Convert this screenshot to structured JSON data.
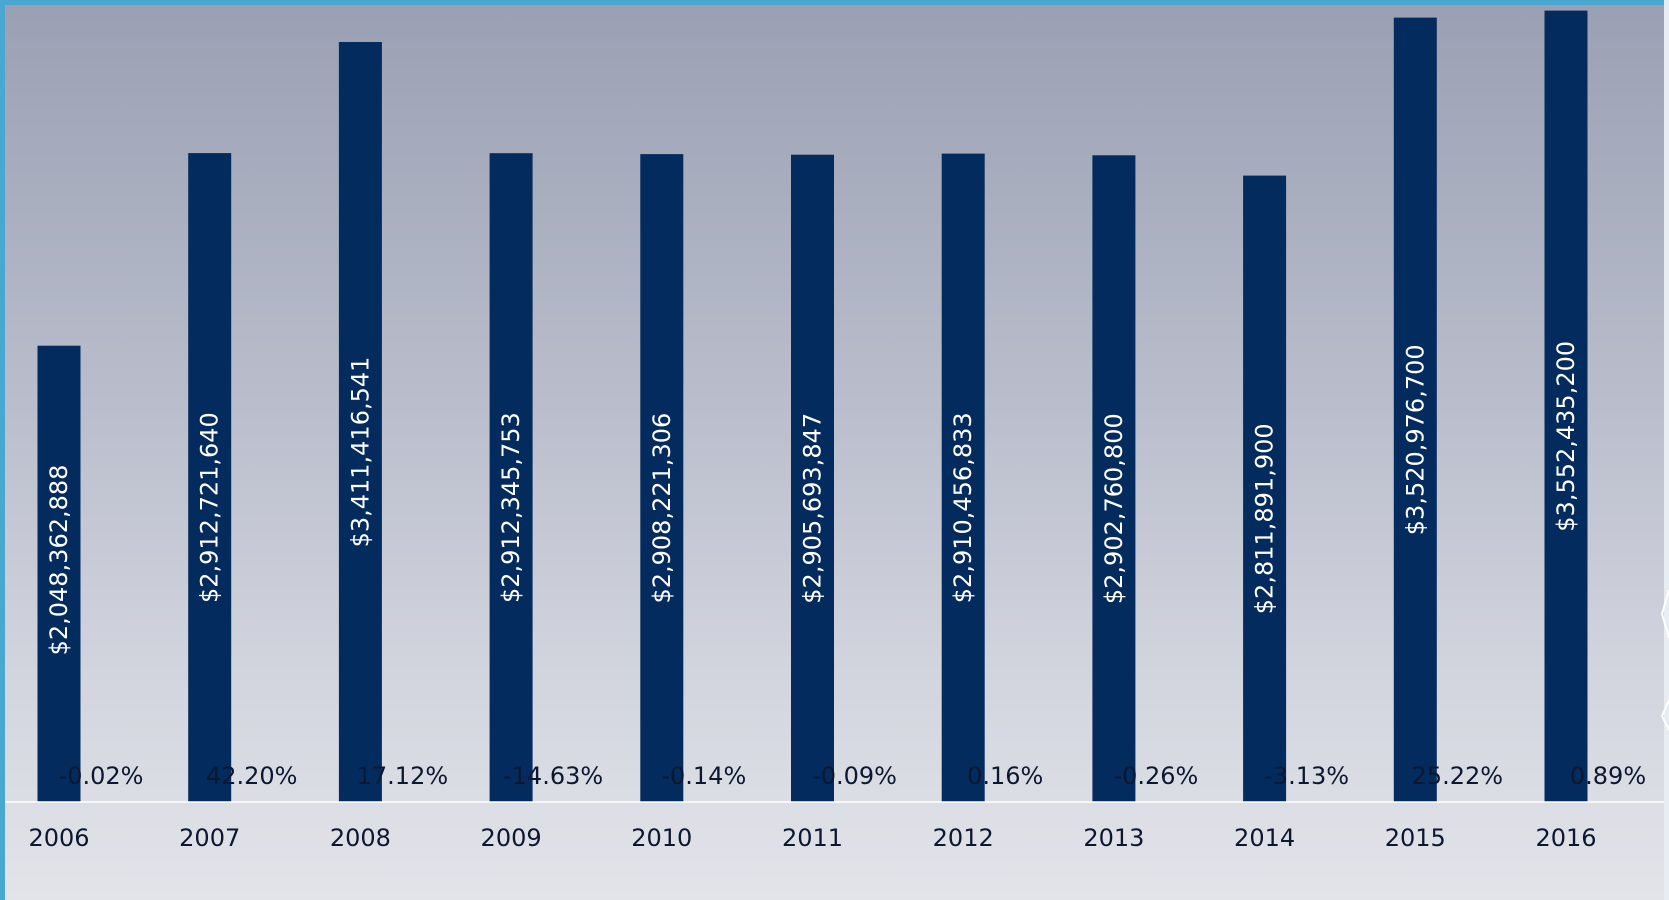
{
  "chart_data": {
    "type": "bar",
    "categories": [
      "2006",
      "2007",
      "2008",
      "2009",
      "2010",
      "2011",
      "2012",
      "2013",
      "2014",
      "2015",
      "2016"
    ],
    "values": [
      2048362888,
      2912721640,
      3411416541,
      2912345753,
      2908221306,
      2905693847,
      2910456833,
      2902760800,
      2811891900,
      3520976700,
      3552435200
    ],
    "value_labels": [
      "$2,048,362,888",
      "$2,912,721,640",
      "$3,411,416,541",
      "$2,912,345,753",
      "$2,908,221,306",
      "$2,905,693,847",
      "$2,910,456,833",
      "$2,902,760,800",
      "$2,811,891,900",
      "$3,520,976,700",
      "$3,552,435,200"
    ],
    "percent_labels": [
      "-0.02%",
      "42.20%",
      "17.12%",
      "-14.63%",
      "-0.14%",
      "-0.09%",
      "0.16%",
      "-0.26%",
      "-3.13%",
      "25.22%",
      "0.89%"
    ],
    "title": "",
    "xlabel": "",
    "ylabel": "",
    "ylim": [
      0,
      3600000000
    ],
    "grid": false,
    "legend": "none",
    "colors": {
      "bar": "#042b5e",
      "value_label": "#ffffff",
      "text": "#0c1730",
      "background_top": "#9aa0b3",
      "background_bottom": "#e3e4ea",
      "frame": "#4aa7cf"
    }
  }
}
